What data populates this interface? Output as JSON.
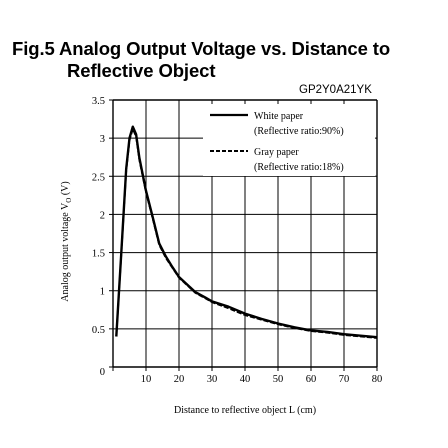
{
  "title_line1": "Fig.5 Analog Output Voltage vs. Distance to",
  "title_line2": "Reflective Object",
  "model": "GP2Y0A21YK",
  "chart_data": {
    "type": "line",
    "title": "Fig.5 Analog Output Voltage vs. Distance to Reflective Object",
    "xlabel": "Distance to reflective object L (cm)",
    "ylabel": "Analog output voltage V",
    "ylabel_sub": "O",
    "ylabel_unit": " (V)",
    "xlim": [
      0,
      80
    ],
    "ylim": [
      0,
      3.5
    ],
    "xticks": [
      0,
      10,
      20,
      30,
      40,
      50,
      60,
      70,
      80
    ],
    "yticks": [
      0,
      0.5,
      1,
      1.5,
      2,
      2.5,
      3,
      3.5
    ],
    "grid": true,
    "legend_position": "top-right",
    "series": [
      {
        "name": "White paper",
        "name_detail": "(Reflective ratio:90%)",
        "line_style": "solid",
        "color": "#000000",
        "x": [
          1,
          2.5,
          4,
          5,
          6,
          7,
          8,
          10,
          12,
          14,
          16,
          18,
          20,
          22,
          25,
          28,
          30,
          35,
          40,
          45,
          50,
          55,
          60,
          65,
          70,
          75,
          80
        ],
        "y": [
          0.4,
          1.5,
          2.6,
          3.0,
          3.15,
          3.05,
          2.74,
          2.31,
          1.97,
          1.62,
          1.45,
          1.31,
          1.18,
          1.1,
          0.98,
          0.91,
          0.86,
          0.79,
          0.7,
          0.63,
          0.57,
          0.52,
          0.48,
          0.46,
          0.43,
          0.41,
          0.39
        ]
      },
      {
        "name": "Gray paper",
        "name_detail": "(Reflective ratio:18%)",
        "line_style": "dashed",
        "color": "#000000",
        "x": [
          1,
          2.5,
          4,
          5,
          6,
          7,
          8,
          10,
          12,
          14,
          16,
          18,
          20,
          22,
          25,
          28,
          30,
          35,
          40,
          45,
          50,
          55,
          60,
          65,
          70,
          75,
          80
        ],
        "y": [
          0.4,
          1.48,
          2.57,
          2.97,
          3.12,
          3.02,
          2.71,
          2.29,
          1.95,
          1.6,
          1.43,
          1.3,
          1.17,
          1.09,
          0.97,
          0.9,
          0.85,
          0.77,
          0.68,
          0.62,
          0.56,
          0.51,
          0.47,
          0.45,
          0.42,
          0.4,
          0.38
        ]
      }
    ]
  }
}
